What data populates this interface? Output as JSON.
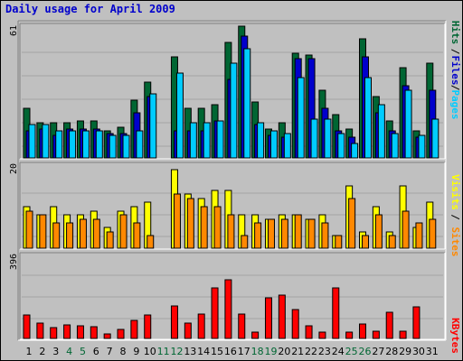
{
  "chart_data": {
    "title": "Daily usage for April 2009",
    "days": [
      "1",
      "2",
      "3",
      "4",
      "5",
      "6",
      "7",
      "8",
      "9",
      "10",
      "11",
      "12",
      "13",
      "14",
      "15",
      "16",
      "17",
      "18",
      "19",
      "20",
      "21",
      "22",
      "23",
      "24",
      "25",
      "26",
      "27",
      "28",
      "29",
      "30",
      "31"
    ],
    "weekend_days": [
      "4",
      "5",
      "11",
      "12",
      "18",
      "19",
      "25",
      "26"
    ],
    "colors": {
      "hits": "#006633",
      "files": "#0000cc",
      "pages": "#00ccff",
      "visits": "#ffff00",
      "sites": "#ff8800",
      "kbytes": "#ff0000",
      "weekday_label": "#000000",
      "weekend_label": "#006633"
    },
    "charts": [
      {
        "type": "bar",
        "ymax_label": "61",
        "legend": [
          "Pages",
          "Files",
          "Hits"
        ],
        "series": [
          {
            "name": "Hits",
            "values": [
              24,
              17,
              17,
              17,
              18,
              18,
              13,
              15,
              28,
              37,
              0,
              49,
              24,
              24,
              26,
              56,
              64,
              27,
              14,
              17,
              51,
              50,
              33,
              21,
              14,
              58,
              30,
              18,
              44,
              13,
              46
            ]
          },
          {
            "name": "Files",
            "values": [
              13,
              14,
              11,
              14,
              14,
              14,
              12,
              12,
              22,
              30,
              0,
              13,
              13,
              13,
              18,
              38,
              59,
              16,
              11,
              10,
              48,
              48,
              24,
              13,
              10,
              49,
              22,
              13,
              35,
              10,
              33
            ]
          },
          {
            "name": "Pages",
            "values": [
              16,
              16,
              13,
              13,
              13,
              13,
              11,
              11,
              13,
              31,
              0,
              41,
              17,
              17,
              18,
              46,
              53,
              17,
              13,
              12,
              39,
              19,
              19,
              12,
              7,
              39,
              26,
              12,
              33,
              11,
              19
            ]
          }
        ]
      },
      {
        "type": "bar",
        "ymax_label": "20",
        "legend": [
          "Sites",
          "Visits"
        ],
        "series": [
          {
            "name": "Visits",
            "values": [
              10,
              8,
              10,
              8,
              8,
              9,
              5,
              9,
              10,
              11,
              0,
              19,
              13,
              12,
              14,
              14,
              8,
              8,
              7,
              8,
              8,
              7,
              8,
              3,
              15,
              4,
              10,
              4,
              15,
              5,
              11
            ]
          },
          {
            "name": "Sites",
            "values": [
              9,
              8,
              6,
              6,
              7,
              7,
              4,
              8,
              6,
              3,
              0,
              13,
              12,
              10,
              10,
              8,
              3,
              6,
              7,
              7,
              8,
              7,
              6,
              3,
              12,
              3,
              8,
              3,
              9,
              6,
              7
            ]
          }
        ]
      },
      {
        "type": "bar",
        "ymax_label": "396",
        "legend": [
          "KBytes"
        ],
        "series": [
          {
            "name": "KBytes",
            "values": [
              112,
              75,
              52,
              65,
              60,
              57,
              20,
              42,
              85,
              110,
              0,
              155,
              74,
              118,
              241,
              281,
              118,
              32,
              192,
              205,
              138,
              59,
              31,
              241,
              28,
              68,
              33,
              125,
              36,
              152,
              0
            ]
          }
        ]
      }
    ]
  }
}
